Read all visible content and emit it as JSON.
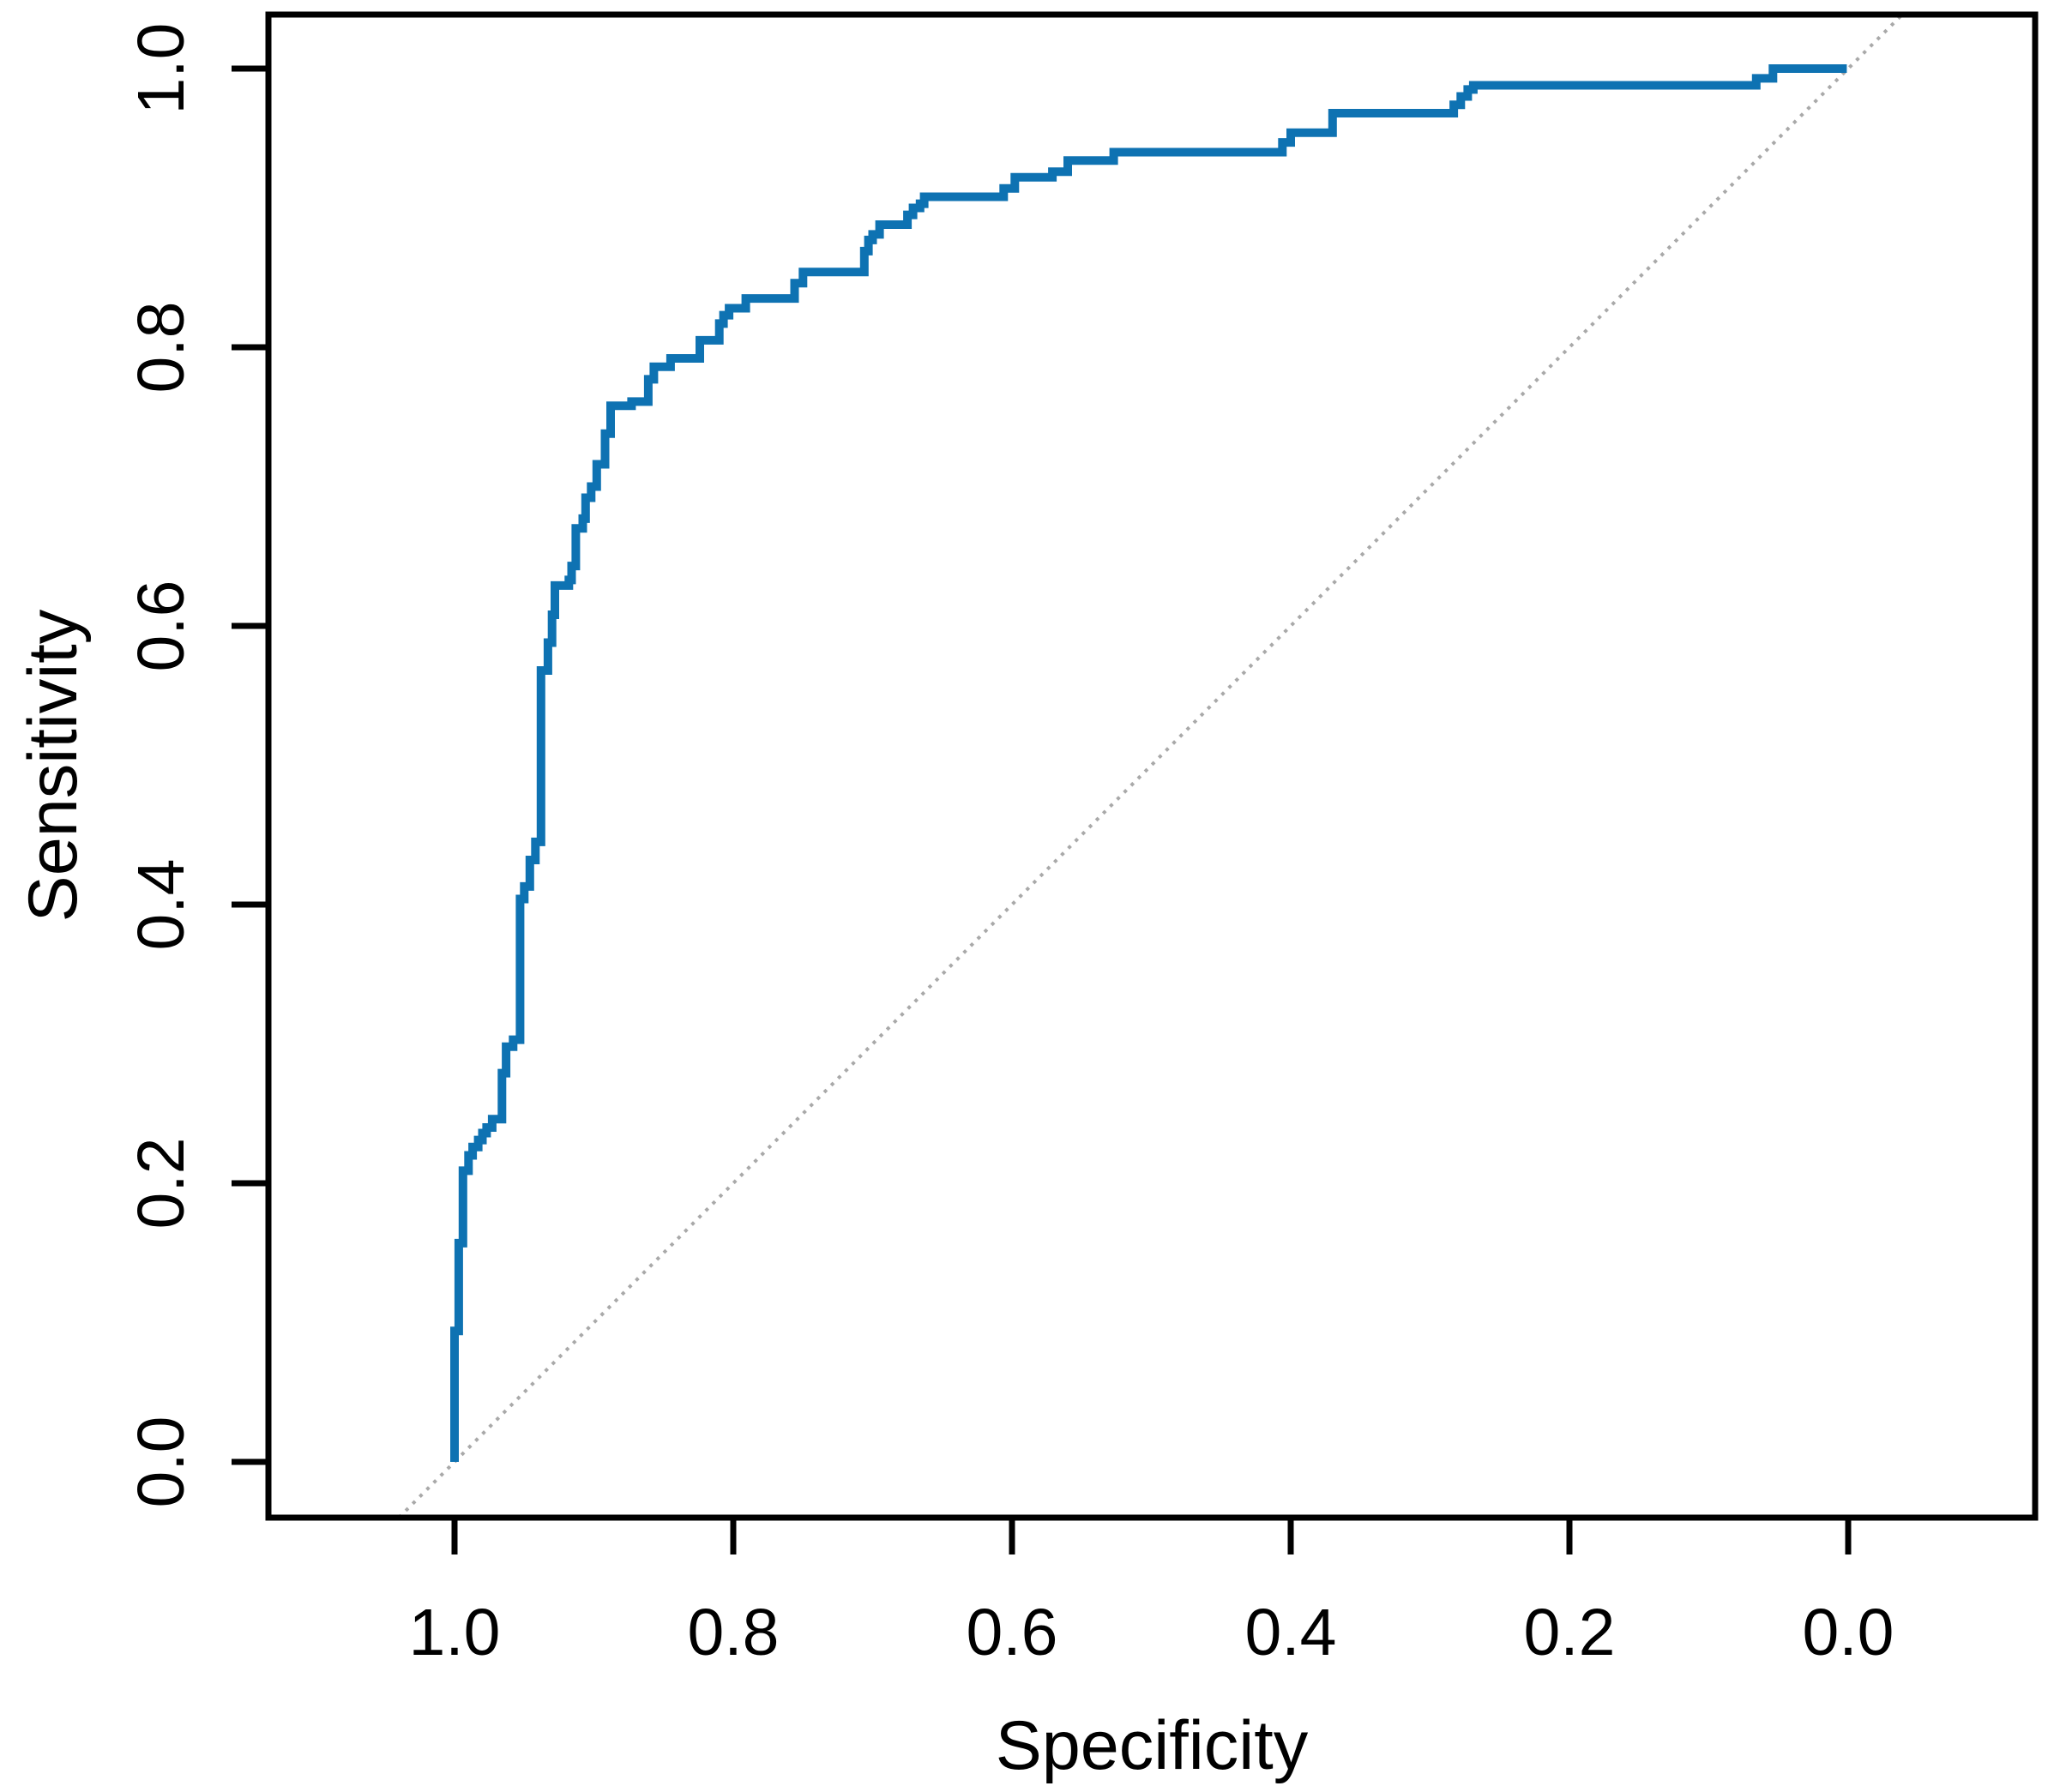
{
  "figure": {
    "background_color": "#ffffff",
    "axis_color": "#000000",
    "text_color": "#000000"
  },
  "chart_data": {
    "type": "line",
    "subtype": "roc-step-curve",
    "title": "",
    "xlabel": "Specificity",
    "ylabel": "Sensitivity",
    "x_axis_reversed": true,
    "xlim": [
      1.0,
      0.0
    ],
    "ylim": [
      0.0,
      1.0
    ],
    "grid": false,
    "legend_position": "none",
    "x_tick_values": [
      1.0,
      0.8,
      0.6,
      0.4,
      0.2,
      0.0
    ],
    "x_tick_labels": [
      "1.0",
      "0.8",
      "0.6",
      "0.4",
      "0.2",
      "0.0"
    ],
    "y_tick_values": [
      0.0,
      0.2,
      0.4,
      0.6,
      0.8,
      1.0
    ],
    "y_tick_labels": [
      "0.0",
      "0.2",
      "0.4",
      "0.6",
      "0.8",
      "1.0"
    ],
    "series": [
      {
        "name": "ROC curve",
        "color": "#0e72b2",
        "linewidth": 10,
        "style": "solid",
        "points": [
          [
            1.0,
            0.0
          ],
          [
            1.0,
            0.094
          ],
          [
            0.997,
            0.094
          ],
          [
            0.997,
            0.157
          ],
          [
            0.994,
            0.157
          ],
          [
            0.994,
            0.209
          ],
          [
            0.99,
            0.209
          ],
          [
            0.99,
            0.22
          ],
          [
            0.987,
            0.22
          ],
          [
            0.987,
            0.226
          ],
          [
            0.983,
            0.226
          ],
          [
            0.983,
            0.231
          ],
          [
            0.98,
            0.231
          ],
          [
            0.98,
            0.236
          ],
          [
            0.977,
            0.236
          ],
          [
            0.977,
            0.24
          ],
          [
            0.973,
            0.24
          ],
          [
            0.973,
            0.246
          ],
          [
            0.966,
            0.246
          ],
          [
            0.966,
            0.279
          ],
          [
            0.963,
            0.279
          ],
          [
            0.963,
            0.298
          ],
          [
            0.958,
            0.298
          ],
          [
            0.958,
            0.303
          ],
          [
            0.953,
            0.303
          ],
          [
            0.953,
            0.404
          ],
          [
            0.95,
            0.404
          ],
          [
            0.95,
            0.413
          ],
          [
            0.946,
            0.413
          ],
          [
            0.946,
            0.432
          ],
          [
            0.942,
            0.432
          ],
          [
            0.942,
            0.445
          ],
          [
            0.938,
            0.445
          ],
          [
            0.938,
            0.568
          ],
          [
            0.933,
            0.568
          ],
          [
            0.933,
            0.588
          ],
          [
            0.93,
            0.588
          ],
          [
            0.93,
            0.608
          ],
          [
            0.928,
            0.608
          ],
          [
            0.928,
            0.629
          ],
          [
            0.918,
            0.629
          ],
          [
            0.918,
            0.633
          ],
          [
            0.916,
            0.633
          ],
          [
            0.916,
            0.643
          ],
          [
            0.913,
            0.643
          ],
          [
            0.913,
            0.67
          ],
          [
            0.908,
            0.67
          ],
          [
            0.908,
            0.677
          ],
          [
            0.906,
            0.677
          ],
          [
            0.906,
            0.692
          ],
          [
            0.902,
            0.692
          ],
          [
            0.902,
            0.7
          ],
          [
            0.898,
            0.7
          ],
          [
            0.898,
            0.716
          ],
          [
            0.892,
            0.716
          ],
          [
            0.892,
            0.738
          ],
          [
            0.888,
            0.738
          ],
          [
            0.888,
            0.758
          ],
          [
            0.873,
            0.758
          ],
          [
            0.873,
            0.761
          ],
          [
            0.861,
            0.761
          ],
          [
            0.861,
            0.777
          ],
          [
            0.857,
            0.777
          ],
          [
            0.857,
            0.786
          ],
          [
            0.845,
            0.786
          ],
          [
            0.845,
            0.792
          ],
          [
            0.824,
            0.792
          ],
          [
            0.824,
            0.805
          ],
          [
            0.81,
            0.805
          ],
          [
            0.81,
            0.817
          ],
          [
            0.807,
            0.817
          ],
          [
            0.807,
            0.823
          ],
          [
            0.803,
            0.823
          ],
          [
            0.803,
            0.828
          ],
          [
            0.791,
            0.828
          ],
          [
            0.791,
            0.835
          ],
          [
            0.756,
            0.835
          ],
          [
            0.756,
            0.846
          ],
          [
            0.75,
            0.846
          ],
          [
            0.75,
            0.854
          ],
          [
            0.706,
            0.854
          ],
          [
            0.706,
            0.869
          ],
          [
            0.703,
            0.869
          ],
          [
            0.703,
            0.877
          ],
          [
            0.7,
            0.877
          ],
          [
            0.7,
            0.881
          ],
          [
            0.695,
            0.881
          ],
          [
            0.695,
            0.888
          ],
          [
            0.675,
            0.888
          ],
          [
            0.675,
            0.895
          ],
          [
            0.671,
            0.895
          ],
          [
            0.671,
            0.9
          ],
          [
            0.666,
            0.9
          ],
          [
            0.666,
            0.903
          ],
          [
            0.663,
            0.903
          ],
          [
            0.663,
            0.908
          ],
          [
            0.606,
            0.908
          ],
          [
            0.606,
            0.914
          ],
          [
            0.598,
            0.914
          ],
          [
            0.598,
            0.922
          ],
          [
            0.571,
            0.922
          ],
          [
            0.571,
            0.926
          ],
          [
            0.56,
            0.926
          ],
          [
            0.56,
            0.934
          ],
          [
            0.527,
            0.934
          ],
          [
            0.527,
            0.94
          ],
          [
            0.406,
            0.94
          ],
          [
            0.406,
            0.947
          ],
          [
            0.4,
            0.947
          ],
          [
            0.4,
            0.954
          ],
          [
            0.37,
            0.954
          ],
          [
            0.37,
            0.968
          ],
          [
            0.283,
            0.968
          ],
          [
            0.283,
            0.974
          ],
          [
            0.278,
            0.974
          ],
          [
            0.278,
            0.98
          ],
          [
            0.273,
            0.98
          ],
          [
            0.273,
            0.985
          ],
          [
            0.269,
            0.985
          ],
          [
            0.269,
            0.988
          ],
          [
            0.066,
            0.988
          ],
          [
            0.066,
            0.993
          ],
          [
            0.054,
            0.993
          ],
          [
            0.054,
            1.0
          ],
          [
            0.001,
            1.0
          ]
        ]
      },
      {
        "name": "Chance diagonal",
        "color": "#a9a9a9",
        "linewidth": 4,
        "style": "dotted",
        "points": [
          [
            1.04,
            -0.04
          ],
          [
            -0.04,
            1.04
          ]
        ]
      }
    ]
  }
}
